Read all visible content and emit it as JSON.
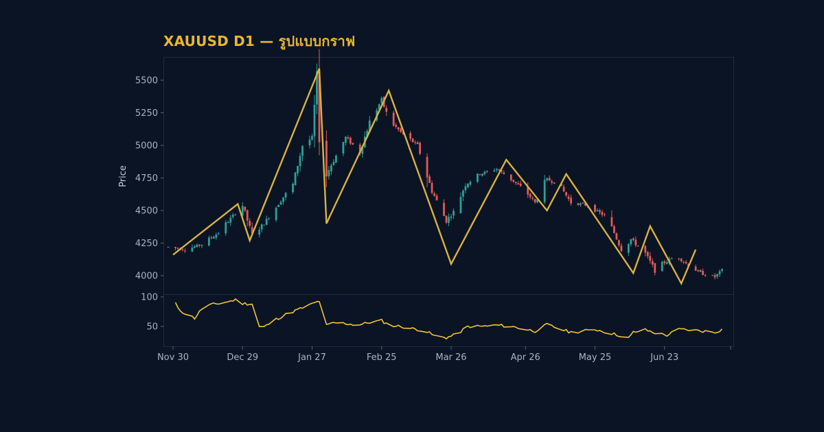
{
  "chart_data": {
    "type": "candlestick",
    "title": "XAUUSD D1 — รูปแบบกราฟ",
    "ylabel": "Price",
    "y_range": [
      3960,
      5580
    ],
    "y_ticks": [
      4000,
      4250,
      4500,
      4750,
      5000,
      5250,
      5500
    ],
    "x_range": [
      "2025-11-28",
      "2026-07-20"
    ],
    "x_ticks": [
      {
        "date": "2025-11-30",
        "label": "Nov 30"
      },
      {
        "date": "2025-12-29",
        "label": "Dec 29"
      },
      {
        "date": "2026-01-27",
        "label": "Jan 27"
      },
      {
        "date": "2026-02-25",
        "label": "Feb 25"
      },
      {
        "date": "2026-03-26",
        "label": "Mar 26"
      },
      {
        "date": "2026-04-26",
        "label": "Apr 26"
      },
      {
        "date": "2026-05-25",
        "label": "May 25"
      },
      {
        "date": "2026-06-23",
        "label": "Jun 23"
      }
    ],
    "candles": {
      "start": "2025-11-28",
      "close_path": [
        [
          "2025-11-28",
          4220
        ],
        [
          "2025-12-05",
          4200
        ],
        [
          "2025-12-12",
          4240
        ],
        [
          "2025-12-19",
          4330
        ],
        [
          "2025-12-26",
          4480
        ],
        [
          "2025-12-29",
          4540
        ],
        [
          "2026-01-02",
          4310
        ],
        [
          "2026-01-07",
          4400
        ],
        [
          "2026-01-14",
          4580
        ],
        [
          "2026-01-19",
          4700
        ],
        [
          "2026-01-23",
          5000
        ],
        [
          "2026-01-27",
          5060
        ],
        [
          "2026-01-29",
          5520
        ],
        [
          "2026-01-31",
          4700
        ],
        [
          "2026-02-04",
          4850
        ],
        [
          "2026-02-10",
          5060
        ],
        [
          "2026-02-16",
          4950
        ],
        [
          "2026-02-20",
          5180
        ],
        [
          "2026-02-25",
          5350
        ],
        [
          "2026-02-28",
          5200
        ],
        [
          "2026-03-05",
          5100
        ],
        [
          "2026-03-12",
          5000
        ],
        [
          "2026-03-18",
          4650
        ],
        [
          "2026-03-24",
          4420
        ],
        [
          "2026-03-27",
          4490
        ],
        [
          "2026-04-01",
          4700
        ],
        [
          "2026-04-07",
          4780
        ],
        [
          "2026-04-14",
          4820
        ],
        [
          "2026-04-20",
          4740
        ],
        [
          "2026-04-26",
          4650
        ],
        [
          "2026-04-30",
          4560
        ],
        [
          "2026-05-05",
          4740
        ],
        [
          "2026-05-10",
          4700
        ],
        [
          "2026-05-15",
          4560
        ],
        [
          "2026-05-22",
          4540
        ],
        [
          "2026-05-29",
          4460
        ],
        [
          "2026-06-02",
          4330
        ],
        [
          "2026-06-05",
          4200
        ],
        [
          "2026-06-09",
          4280
        ],
        [
          "2026-06-15",
          4170
        ],
        [
          "2026-06-19",
          4040
        ],
        [
          "2026-06-23",
          4100
        ],
        [
          "2026-06-28",
          4150
        ],
        [
          "2026-07-03",
          4080
        ],
        [
          "2026-07-08",
          4020
        ],
        [
          "2026-07-14",
          3990
        ],
        [
          "2026-07-18",
          4060
        ]
      ],
      "up_color": "#2aa198",
      "down_color": "#e05a5a"
    },
    "zigzag": {
      "color": "#d9b33e",
      "points": [
        [
          "2025-11-30",
          4160
        ],
        [
          "2025-12-27",
          4550
        ],
        [
          "2026-01-01",
          4270
        ],
        [
          "2026-01-30",
          5590
        ],
        [
          "2026-02-02",
          4400
        ],
        [
          "2026-02-28",
          5420
        ],
        [
          "2026-03-26",
          4090
        ],
        [
          "2026-04-18",
          4890
        ],
        [
          "2026-05-05",
          4500
        ],
        [
          "2026-05-13",
          4780
        ],
        [
          "2026-06-10",
          4020
        ],
        [
          "2026-06-17",
          4380
        ],
        [
          "2026-06-30",
          3940
        ],
        [
          "2026-07-06",
          4200
        ]
      ]
    },
    "oscillator": {
      "y_range": [
        30,
        105
      ],
      "y_ticks": [
        50,
        100
      ],
      "color": "#f0c43a",
      "path": [
        [
          "2025-11-30",
          100
        ],
        [
          "2025-12-02",
          80
        ],
        [
          "2025-12-05",
          72
        ],
        [
          "2025-12-09",
          64
        ],
        [
          "2025-12-13",
          85
        ],
        [
          "2025-12-18",
          88
        ],
        [
          "2025-12-23",
          92
        ],
        [
          "2025-12-26",
          95
        ],
        [
          "2025-12-29",
          89
        ],
        [
          "2026-01-02",
          88
        ],
        [
          "2026-01-03",
          50
        ],
        [
          "2026-01-07",
          49
        ],
        [
          "2026-01-12",
          62
        ],
        [
          "2026-01-17",
          72
        ],
        [
          "2026-01-22",
          80
        ],
        [
          "2026-01-27",
          88
        ],
        [
          "2026-01-30",
          93
        ],
        [
          "2026-02-01",
          50
        ],
        [
          "2026-02-05",
          56
        ],
        [
          "2026-02-10",
          55
        ],
        [
          "2026-02-15",
          52
        ],
        [
          "2026-02-20",
          57
        ],
        [
          "2026-02-25",
          60
        ],
        [
          "2026-02-28",
          52
        ],
        [
          "2026-03-05",
          50
        ],
        [
          "2026-03-10",
          46
        ],
        [
          "2026-03-15",
          43
        ],
        [
          "2026-03-19",
          34
        ],
        [
          "2026-03-24",
          31
        ],
        [
          "2026-03-28",
          36
        ],
        [
          "2026-04-02",
          50
        ],
        [
          "2026-04-08",
          50
        ],
        [
          "2026-04-14",
          52
        ],
        [
          "2026-04-20",
          50
        ],
        [
          "2026-04-26",
          45
        ],
        [
          "2026-04-30",
          42
        ],
        [
          "2026-05-05",
          53
        ],
        [
          "2026-05-10",
          46
        ],
        [
          "2026-05-15",
          40
        ],
        [
          "2026-05-20",
          42
        ],
        [
          "2026-05-25",
          45
        ],
        [
          "2026-05-30",
          40
        ],
        [
          "2026-06-04",
          35
        ],
        [
          "2026-06-07",
          25
        ],
        [
          "2026-06-10",
          40
        ],
        [
          "2026-06-15",
          44
        ],
        [
          "2026-06-20",
          38
        ],
        [
          "2026-06-24",
          35
        ],
        [
          "2026-06-29",
          45
        ],
        [
          "2026-07-04",
          44
        ],
        [
          "2026-07-09",
          42
        ],
        [
          "2026-07-14",
          40
        ],
        [
          "2026-07-19",
          48
        ]
      ]
    }
  }
}
